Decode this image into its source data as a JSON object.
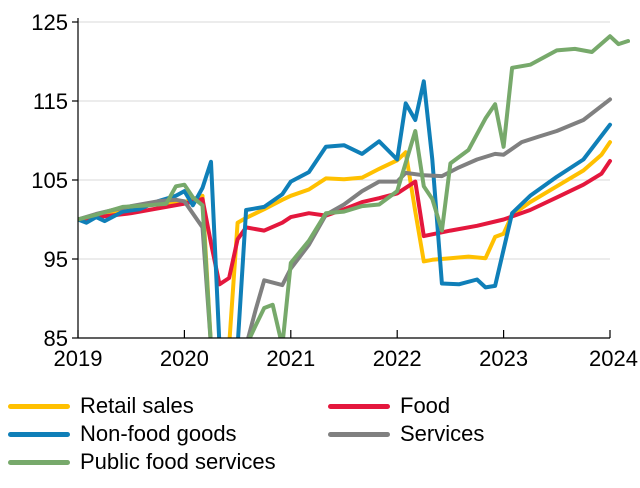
{
  "chart_data": {
    "type": "line",
    "title": "",
    "xlabel": "",
    "ylabel": "",
    "xlim": [
      2019,
      2024
    ],
    "ylim": [
      85,
      125
    ],
    "y_ticks": [
      "125",
      "115",
      "105",
      "95",
      "85"
    ],
    "x_ticks": [
      "2019",
      "2020",
      "2021",
      "2022",
      "2023",
      "2024"
    ],
    "grid": "horizontal",
    "legend_position": "bottom",
    "series": [
      {
        "name": "Retail sales",
        "color": "#FFC000",
        "points": [
          [
            2019.0,
            100.0
          ],
          [
            2019.25,
            100.6
          ],
          [
            2019.5,
            101.4
          ],
          [
            2019.75,
            102.0
          ],
          [
            2020.0,
            102.2
          ],
          [
            2020.17,
            103.0
          ],
          [
            2020.25,
            84.0
          ],
          [
            2020.42,
            84.0
          ],
          [
            2020.5,
            99.6
          ],
          [
            2020.58,
            100.2
          ],
          [
            2020.75,
            101.3
          ],
          [
            2020.92,
            102.5
          ],
          [
            2021.0,
            103.0
          ],
          [
            2021.17,
            103.8
          ],
          [
            2021.33,
            105.2
          ],
          [
            2021.5,
            105.1
          ],
          [
            2021.67,
            105.3
          ],
          [
            2021.83,
            106.4
          ],
          [
            2022.0,
            107.5
          ],
          [
            2022.08,
            108.5
          ],
          [
            2022.17,
            101.0
          ],
          [
            2022.25,
            94.7
          ],
          [
            2022.33,
            94.9
          ],
          [
            2022.5,
            95.1
          ],
          [
            2022.67,
            95.3
          ],
          [
            2022.83,
            95.1
          ],
          [
            2022.92,
            97.8
          ],
          [
            2023.0,
            98.2
          ],
          [
            2023.08,
            100.6
          ],
          [
            2023.25,
            102.2
          ],
          [
            2023.5,
            104.2
          ],
          [
            2023.75,
            106.2
          ],
          [
            2023.92,
            108.2
          ],
          [
            2024.0,
            109.8
          ]
        ]
      },
      {
        "name": "Food",
        "color": "#E4173D",
        "points": [
          [
            2019.0,
            100.0
          ],
          [
            2019.25,
            100.4
          ],
          [
            2019.5,
            100.8
          ],
          [
            2019.75,
            101.4
          ],
          [
            2020.0,
            102.0
          ],
          [
            2020.17,
            102.6
          ],
          [
            2020.25,
            97.0
          ],
          [
            2020.33,
            91.8
          ],
          [
            2020.42,
            92.6
          ],
          [
            2020.5,
            97.5
          ],
          [
            2020.58,
            99.0
          ],
          [
            2020.75,
            98.6
          ],
          [
            2020.92,
            99.6
          ],
          [
            2021.0,
            100.3
          ],
          [
            2021.17,
            100.8
          ],
          [
            2021.33,
            100.5
          ],
          [
            2021.5,
            101.3
          ],
          [
            2021.67,
            102.2
          ],
          [
            2021.83,
            102.7
          ],
          [
            2022.0,
            103.3
          ],
          [
            2022.17,
            104.8
          ],
          [
            2022.25,
            97.9
          ],
          [
            2022.5,
            98.6
          ],
          [
            2022.75,
            99.2
          ],
          [
            2023.0,
            100.0
          ],
          [
            2023.25,
            101.2
          ],
          [
            2023.5,
            102.8
          ],
          [
            2023.75,
            104.4
          ],
          [
            2023.92,
            105.8
          ],
          [
            2024.0,
            107.4
          ]
        ]
      },
      {
        "name": "Non-food goods",
        "color": "#0F7FB8",
        "points": [
          [
            2019.0,
            100.0
          ],
          [
            2019.08,
            99.6
          ],
          [
            2019.17,
            100.3
          ],
          [
            2019.25,
            99.8
          ],
          [
            2019.42,
            101.0
          ],
          [
            2019.58,
            101.3
          ],
          [
            2019.75,
            102.3
          ],
          [
            2019.92,
            103.0
          ],
          [
            2020.0,
            103.6
          ],
          [
            2020.08,
            101.8
          ],
          [
            2020.17,
            104.0
          ],
          [
            2020.25,
            107.3
          ],
          [
            2020.33,
            84.0
          ],
          [
            2020.5,
            84.0
          ],
          [
            2020.58,
            101.2
          ],
          [
            2020.75,
            101.6
          ],
          [
            2020.92,
            103.2
          ],
          [
            2021.0,
            104.8
          ],
          [
            2021.17,
            106.0
          ],
          [
            2021.33,
            109.2
          ],
          [
            2021.5,
            109.4
          ],
          [
            2021.67,
            108.3
          ],
          [
            2021.83,
            109.9
          ],
          [
            2022.0,
            107.6
          ],
          [
            2022.08,
            114.7
          ],
          [
            2022.17,
            112.6
          ],
          [
            2022.25,
            117.5
          ],
          [
            2022.33,
            107.6
          ],
          [
            2022.42,
            91.9
          ],
          [
            2022.58,
            91.8
          ],
          [
            2022.75,
            92.4
          ],
          [
            2022.83,
            91.4
          ],
          [
            2022.92,
            91.6
          ],
          [
            2023.0,
            96.2
          ],
          [
            2023.08,
            100.8
          ],
          [
            2023.25,
            103.0
          ],
          [
            2023.5,
            105.4
          ],
          [
            2023.75,
            107.6
          ],
          [
            2024.0,
            112.0
          ]
        ]
      },
      {
        "name": "Services",
        "color": "#808080",
        "points": [
          [
            2019.0,
            100.0
          ],
          [
            2019.17,
            100.7
          ],
          [
            2019.33,
            101.2
          ],
          [
            2019.5,
            101.7
          ],
          [
            2019.75,
            102.3
          ],
          [
            2019.92,
            102.5
          ],
          [
            2020.0,
            102.3
          ],
          [
            2020.17,
            99.0
          ],
          [
            2020.25,
            84.0
          ],
          [
            2020.58,
            84.0
          ],
          [
            2020.67,
            88.6
          ],
          [
            2020.75,
            92.3
          ],
          [
            2020.92,
            91.7
          ],
          [
            2021.0,
            93.8
          ],
          [
            2021.17,
            96.8
          ],
          [
            2021.33,
            100.6
          ],
          [
            2021.5,
            101.9
          ],
          [
            2021.67,
            103.6
          ],
          [
            2021.83,
            104.8
          ],
          [
            2022.0,
            104.8
          ],
          [
            2022.08,
            105.9
          ],
          [
            2022.25,
            105.6
          ],
          [
            2022.42,
            105.5
          ],
          [
            2022.58,
            106.6
          ],
          [
            2022.75,
            107.6
          ],
          [
            2022.92,
            108.3
          ],
          [
            2023.0,
            108.2
          ],
          [
            2023.17,
            109.8
          ],
          [
            2023.33,
            110.5
          ],
          [
            2023.5,
            111.2
          ],
          [
            2023.75,
            112.6
          ],
          [
            2024.0,
            115.2
          ]
        ]
      },
      {
        "name": "Public food services",
        "color": "#77A96B",
        "points": [
          [
            2019.0,
            100.0
          ],
          [
            2019.17,
            100.6
          ],
          [
            2019.42,
            101.6
          ],
          [
            2019.67,
            101.8
          ],
          [
            2019.83,
            102.0
          ],
          [
            2019.92,
            104.2
          ],
          [
            2020.0,
            104.4
          ],
          [
            2020.08,
            102.8
          ],
          [
            2020.17,
            101.8
          ],
          [
            2020.25,
            84.0
          ],
          [
            2020.58,
            84.0
          ],
          [
            2020.67,
            86.6
          ],
          [
            2020.75,
            88.8
          ],
          [
            2020.83,
            89.2
          ],
          [
            2020.92,
            84.0
          ],
          [
            2021.0,
            94.5
          ],
          [
            2021.17,
            97.3
          ],
          [
            2021.33,
            100.8
          ],
          [
            2021.5,
            101.0
          ],
          [
            2021.67,
            101.7
          ],
          [
            2021.83,
            101.9
          ],
          [
            2022.0,
            103.6
          ],
          [
            2022.17,
            111.2
          ],
          [
            2022.25,
            104.2
          ],
          [
            2022.33,
            102.6
          ],
          [
            2022.42,
            98.6
          ],
          [
            2022.5,
            107.1
          ],
          [
            2022.67,
            108.8
          ],
          [
            2022.83,
            112.8
          ],
          [
            2022.92,
            114.6
          ],
          [
            2023.0,
            109.2
          ],
          [
            2023.08,
            119.2
          ],
          [
            2023.25,
            119.6
          ],
          [
            2023.5,
            121.4
          ],
          [
            2023.67,
            121.6
          ],
          [
            2023.83,
            121.2
          ],
          [
            2024.0,
            123.2
          ],
          [
            2024.08,
            122.2
          ],
          [
            2024.17,
            122.6
          ]
        ]
      }
    ]
  }
}
